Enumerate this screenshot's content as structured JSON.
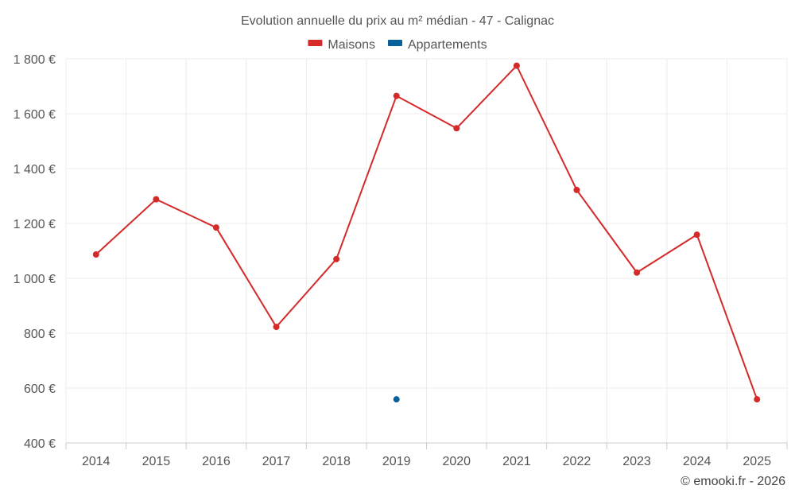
{
  "chart_data": {
    "type": "line",
    "title": "Evolution annuelle du prix au m² médian - 47 - Calignac",
    "categories": [
      "2014",
      "2015",
      "2016",
      "2017",
      "2018",
      "2019",
      "2020",
      "2021",
      "2022",
      "2023",
      "2024",
      "2025"
    ],
    "series": [
      {
        "name": "Maisons",
        "color": "#d42a2a",
        "values": [
          1087,
          1288,
          1185,
          823,
          1070,
          1665,
          1547,
          1775,
          1322,
          1021,
          1159,
          559
        ]
      },
      {
        "name": "Appartements",
        "color": "#07609c",
        "values": [
          null,
          null,
          null,
          null,
          null,
          559,
          null,
          null,
          null,
          null,
          null,
          null
        ]
      }
    ],
    "yticks": [
      400,
      600,
      800,
      1000,
      1200,
      1400,
      1600,
      1800
    ],
    "ytick_labels": [
      "400 €",
      "600 €",
      "800 €",
      "1 000 €",
      "1 200 €",
      "1 400 €",
      "1 600 €",
      "1 800 €"
    ],
    "ylim": [
      400,
      1800
    ],
    "xlabel": "",
    "ylabel": "",
    "grid": true,
    "legend_position": "top-center"
  },
  "credit": "© emooki.fr - 2026"
}
